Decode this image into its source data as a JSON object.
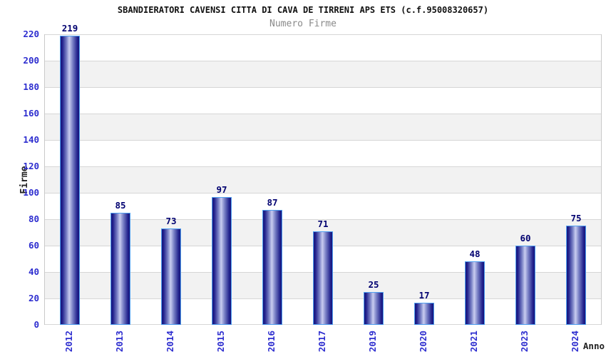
{
  "title": "SBANDIERATORI CAVENSI CITTA DI CAVA DE TIRRENI APS ETS (c.f.95008320657)",
  "subtitle": "Numero Firme",
  "chart_data": {
    "type": "bar",
    "categories": [
      "2012",
      "2013",
      "2014",
      "2015",
      "2016",
      "2017",
      "2019",
      "2020",
      "2021",
      "2023",
      "2024"
    ],
    "values": [
      219,
      85,
      73,
      97,
      87,
      71,
      25,
      17,
      48,
      60,
      75
    ],
    "title": "SBANDIERATORI CAVENSI CITTA DI CAVA DE TIRRENI APS ETS (c.f.95008320657)",
    "subtitle": "Numero Firme",
    "xlabel": "Anno",
    "ylabel": "Firme",
    "ylim": [
      0,
      220
    ],
    "ytick_step": 20,
    "grid": true,
    "legend": false,
    "band_fill_alternating": true,
    "colors": {
      "tick_label_blue": "#2d2dcf",
      "value_label_navy": "#000070",
      "title_color": "#101010",
      "subtitle_gray": "#8a8a8a",
      "axis_title_color": "#222222",
      "gridline": "#d6d6d6",
      "band_gray": "#f2f2f2",
      "bar_border_lightblue": "#4f9ff0",
      "bar_dark": "#15157c",
      "bar_mid": "#7a82c6",
      "bar_light": "#c9cdf0"
    }
  }
}
